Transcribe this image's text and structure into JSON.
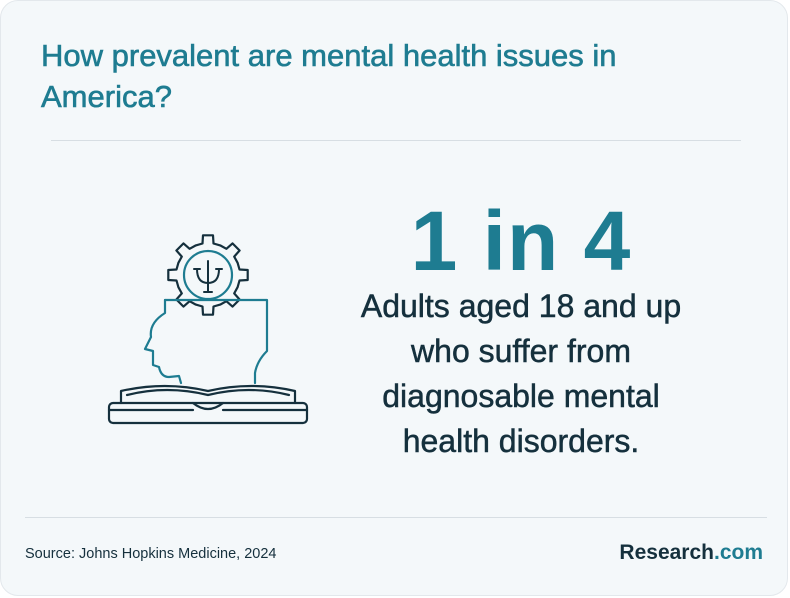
{
  "title": "How prevalent are mental health issues in America?",
  "stat": {
    "value": "1 in 4",
    "lines": [
      "Adults aged 18 and up",
      "who suffer from",
      "diagnosable mental",
      "health disorders."
    ]
  },
  "footer": {
    "source": "Source: Johns Hopkins Medicine, 2024",
    "brand_name": "Research",
    "brand_suffix": ".com"
  },
  "icons": {
    "illustration": "head-gear-psi-book-icon"
  },
  "colors": {
    "accent": "#1e7c91",
    "text_dark": "#15303d",
    "background": "#f4f8fa"
  }
}
